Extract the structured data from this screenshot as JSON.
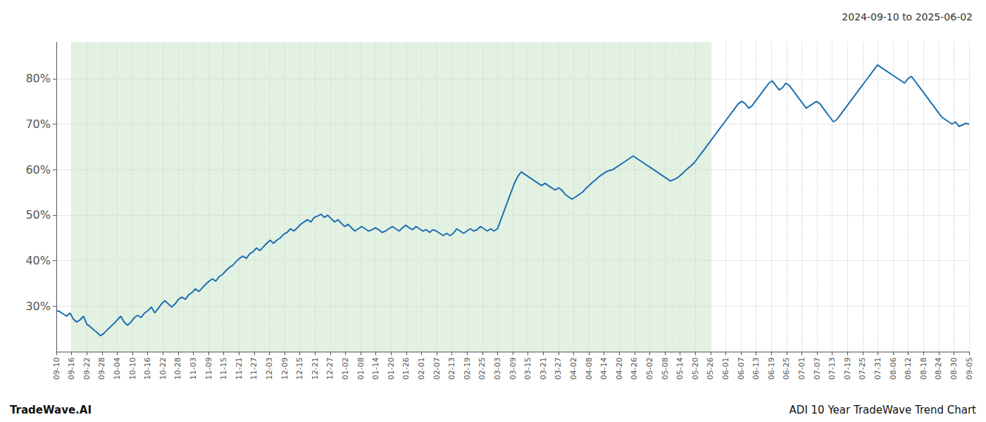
{
  "chart_data": {
    "type": "line",
    "title": "2024-09-10 to 2025-06-02",
    "annotations": [
      "TradeWave.AI",
      "ADI 10 Year TradeWave Trend Chart"
    ],
    "color": "#1a6faf",
    "grid": true,
    "xlim": [
      0,
      60
    ],
    "xticks": [
      {
        "value": 0,
        "label": "09-10"
      },
      {
        "value": 1,
        "label": "09-16"
      },
      {
        "value": 2,
        "label": "09-22"
      },
      {
        "value": 3,
        "label": "09-28"
      },
      {
        "value": 4,
        "label": "10-04"
      },
      {
        "value": 5,
        "label": "10-10"
      },
      {
        "value": 6,
        "label": "10-16"
      },
      {
        "value": 7,
        "label": "10-22"
      },
      {
        "value": 8,
        "label": "10-28"
      },
      {
        "value": 9,
        "label": "11-03"
      },
      {
        "value": 10,
        "label": "11-09"
      },
      {
        "value": 11,
        "label": "11-15"
      },
      {
        "value": 12,
        "label": "11-21"
      },
      {
        "value": 13,
        "label": "11-27"
      },
      {
        "value": 14,
        "label": "12-03"
      },
      {
        "value": 15,
        "label": "12-09"
      },
      {
        "value": 16,
        "label": "12-15"
      },
      {
        "value": 17,
        "label": "12-21"
      },
      {
        "value": 18,
        "label": "12-27"
      },
      {
        "value": 19,
        "label": "01-02"
      },
      {
        "value": 20,
        "label": "01-08"
      },
      {
        "value": 21,
        "label": "01-14"
      },
      {
        "value": 22,
        "label": "01-20"
      },
      {
        "value": 23,
        "label": "01-26"
      },
      {
        "value": 24,
        "label": "02-01"
      },
      {
        "value": 25,
        "label": "02-07"
      },
      {
        "value": 26,
        "label": "02-13"
      },
      {
        "value": 27,
        "label": "02-19"
      },
      {
        "value": 28,
        "label": "02-25"
      },
      {
        "value": 29,
        "label": "03-03"
      },
      {
        "value": 30,
        "label": "03-09"
      },
      {
        "value": 31,
        "label": "03-15"
      },
      {
        "value": 32,
        "label": "03-21"
      },
      {
        "value": 33,
        "label": "03-27"
      },
      {
        "value": 34,
        "label": "04-02"
      },
      {
        "value": 35,
        "label": "04-08"
      },
      {
        "value": 36,
        "label": "04-14"
      },
      {
        "value": 37,
        "label": "04-20"
      },
      {
        "value": 38,
        "label": "04-26"
      },
      {
        "value": 39,
        "label": "05-02"
      },
      {
        "value": 40,
        "label": "05-08"
      },
      {
        "value": 41,
        "label": "05-14"
      },
      {
        "value": 42,
        "label": "05-20"
      },
      {
        "value": 43,
        "label": "05-26"
      },
      {
        "value": 44,
        "label": "06-01"
      },
      {
        "value": 45,
        "label": "06-07"
      },
      {
        "value": 46,
        "label": "06-13"
      },
      {
        "value": 47,
        "label": "06-19"
      },
      {
        "value": 48,
        "label": "06-25"
      },
      {
        "value": 49,
        "label": "07-01"
      },
      {
        "value": 50,
        "label": "07-07"
      },
      {
        "value": 51,
        "label": "07-13"
      },
      {
        "value": 52,
        "label": "07-19"
      },
      {
        "value": 53,
        "label": "07-25"
      },
      {
        "value": 54,
        "label": "07-31"
      },
      {
        "value": 55,
        "label": "08-06"
      },
      {
        "value": 56,
        "label": "08-12"
      },
      {
        "value": 57,
        "label": "08-18"
      },
      {
        "value": 58,
        "label": "08-24"
      },
      {
        "value": 59,
        "label": "08-30"
      },
      {
        "value": 60,
        "label": "09-05"
      }
    ],
    "ylim": [
      20,
      88
    ],
    "yticks": [
      {
        "value": 30,
        "label": "30%"
      },
      {
        "value": 40,
        "label": "40%"
      },
      {
        "value": 50,
        "label": "50%"
      },
      {
        "value": 60,
        "label": "60%"
      },
      {
        "value": 70,
        "label": "70%"
      },
      {
        "value": 80,
        "label": "80%"
      }
    ],
    "shaded": {
      "x": [
        1,
        43
      ],
      "color": "#cce5cc"
    },
    "values": [
      29.0,
      28.8,
      28.3,
      27.8,
      28.5,
      27.2,
      26.5,
      27.0,
      27.8,
      26.0,
      25.5,
      24.8,
      24.2,
      23.5,
      24.0,
      24.8,
      25.5,
      26.2,
      27.0,
      27.8,
      26.5,
      25.8,
      26.5,
      27.5,
      28.0,
      27.5,
      28.5,
      29.0,
      29.8,
      28.5,
      29.5,
      30.5,
      31.2,
      30.5,
      29.8,
      30.5,
      31.5,
      32.0,
      31.5,
      32.5,
      33.0,
      33.8,
      33.2,
      34.0,
      34.8,
      35.5,
      36.0,
      35.5,
      36.5,
      37.0,
      37.8,
      38.5,
      39.0,
      39.8,
      40.5,
      41.0,
      40.5,
      41.5,
      42.0,
      42.8,
      42.2,
      43.0,
      43.8,
      44.5,
      43.8,
      44.5,
      45.0,
      45.8,
      46.2,
      47.0,
      46.5,
      47.2,
      48.0,
      48.5,
      49.0,
      48.5,
      49.5,
      49.8,
      50.2,
      49.5,
      50.0,
      49.2,
      48.5,
      49.0,
      48.2,
      47.5,
      48.0,
      47.2,
      46.5,
      47.0,
      47.5,
      47.0,
      46.5,
      46.8,
      47.2,
      46.8,
      46.2,
      46.5,
      47.0,
      47.5,
      47.0,
      46.5,
      47.2,
      47.8,
      47.2,
      46.8,
      47.5,
      47.0,
      46.5,
      46.8,
      46.2,
      46.8,
      46.5,
      46.0,
      45.5,
      46.0,
      45.5,
      46.0,
      47.0,
      46.5,
      46.0,
      46.5,
      47.0,
      46.5,
      46.8,
      47.5,
      47.0,
      46.5,
      47.0,
      46.5,
      47.0,
      49.0,
      51.0,
      53.0,
      55.0,
      57.0,
      58.5,
      59.5,
      59.0,
      58.5,
      58.0,
      57.5,
      57.0,
      56.5,
      57.0,
      56.5,
      56.0,
      55.5,
      56.0,
      55.5,
      54.5,
      54.0,
      53.5,
      54.0,
      54.5,
      55.0,
      55.8,
      56.5,
      57.2,
      57.8,
      58.5,
      59.0,
      59.5,
      59.8,
      60.0,
      60.5,
      61.0,
      61.5,
      62.0,
      62.5,
      63.0,
      62.5,
      62.0,
      61.5,
      61.0,
      60.5,
      60.0,
      59.5,
      59.0,
      58.5,
      58.0,
      57.5,
      57.8,
      58.2,
      58.8,
      59.5,
      60.2,
      60.8,
      61.5,
      62.5,
      63.5,
      64.5,
      65.5,
      66.5,
      67.5,
      68.5,
      69.5,
      70.5,
      71.5,
      72.5,
      73.5,
      74.5,
      75.0,
      74.5,
      73.5,
      74.0,
      75.0,
      76.0,
      77.0,
      78.0,
      79.0,
      79.5,
      78.5,
      77.5,
      78.0,
      79.0,
      78.5,
      77.5,
      76.5,
      75.5,
      74.5,
      73.5,
      74.0,
      74.5,
      75.0,
      74.5,
      73.5,
      72.5,
      71.5,
      70.5,
      71.0,
      72.0,
      73.0,
      74.0,
      75.0,
      76.0,
      77.0,
      78.0,
      79.0,
      80.0,
      81.0,
      82.0,
      83.0,
      82.5,
      82.0,
      81.5,
      81.0,
      80.5,
      80.0,
      79.5,
      79.0,
      80.0,
      80.5,
      79.5,
      78.5,
      77.5,
      76.5,
      75.5,
      74.5,
      73.5,
      72.5,
      71.5,
      71.0,
      70.5,
      70.0,
      70.5,
      69.5,
      69.8,
      70.2,
      70.0
    ]
  }
}
